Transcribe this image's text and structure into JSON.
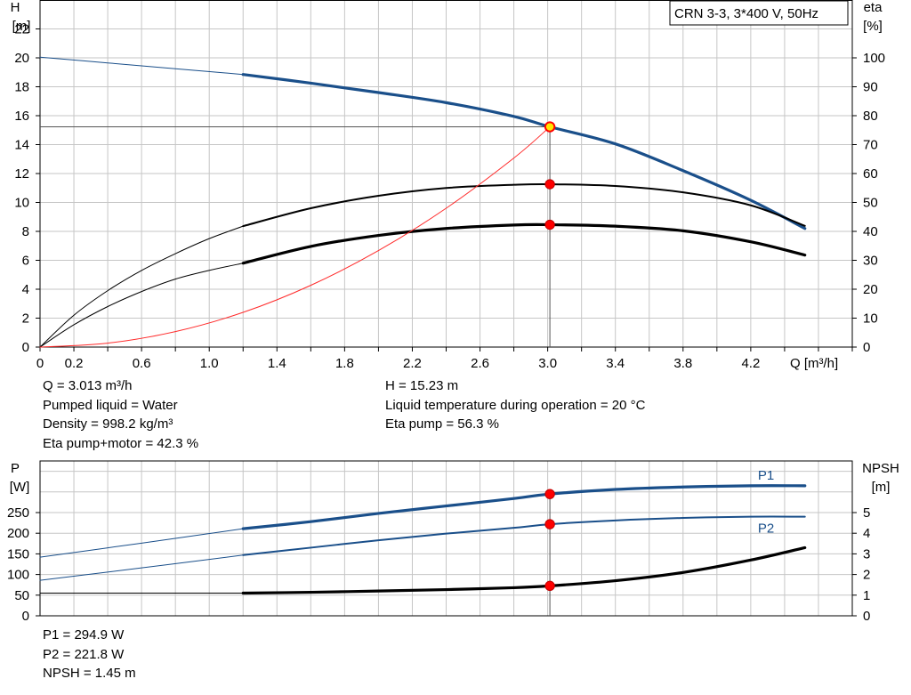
{
  "chart_data": [
    {
      "type": "line",
      "title": "CRN 3-3, 3*400 V, 50Hz",
      "xlabel": "Q [m³/h]",
      "ylabel": [
        "H",
        "[m]"
      ],
      "ylabel_right": [
        "eta",
        "[%]"
      ],
      "xlim": [
        0,
        4.8
      ],
      "ylim": [
        0,
        24
      ],
      "ylim_right": [
        0,
        120
      ],
      "grid": true,
      "x_ticks": [
        {
          "v": 0,
          "label": "0"
        },
        {
          "v": 0.2,
          "label": "0.2"
        },
        {
          "v": 0.6,
          "label": "0.6"
        },
        {
          "v": 1.0,
          "label": "1.0"
        },
        {
          "v": 1.4,
          "label": "1.4"
        },
        {
          "v": 1.8,
          "label": "1.8"
        },
        {
          "v": 2.2,
          "label": "2.2"
        },
        {
          "v": 2.6,
          "label": "2.6"
        },
        {
          "v": 3.0,
          "label": "3.0"
        },
        {
          "v": 3.4,
          "label": "3.4"
        },
        {
          "v": 3.8,
          "label": "3.8"
        },
        {
          "v": 4.2,
          "label": "4.2"
        }
      ],
      "y_ticks": [
        0,
        2,
        4,
        6,
        8,
        10,
        12,
        14,
        16,
        18,
        20,
        22
      ],
      "y_ticks_right": [
        0,
        10,
        20,
        30,
        40,
        50,
        60,
        70,
        80,
        90,
        100
      ],
      "series": [
        {
          "color": "#1a4f8a",
          "axis": "left",
          "width": 3.2,
          "x": [
            1.2,
            1.6,
            2.0,
            2.4,
            2.8,
            3.013,
            3.4,
            3.8,
            4.2,
            4.52
          ],
          "y": [
            18.85,
            18.25,
            17.6,
            16.9,
            15.95,
            15.23,
            14.05,
            12.2,
            10.15,
            8.2
          ]
        },
        {
          "color": "#1a4f8a",
          "axis": "left",
          "width": 1,
          "x": [
            0,
            0.4,
            0.8,
            1.2
          ],
          "y": [
            20.05,
            19.65,
            19.25,
            18.85
          ]
        },
        {
          "color": "#000000",
          "axis": "right",
          "width": 2,
          "x": [
            1.2,
            1.6,
            2.0,
            2.4,
            2.8,
            3.013,
            3.4,
            3.8,
            4.2,
            4.52
          ],
          "y": [
            41.8,
            48.0,
            52.3,
            55.0,
            56.1,
            56.3,
            55.7,
            53.5,
            49.0,
            41.9
          ]
        },
        {
          "color": "#000000",
          "axis": "right",
          "width": 1,
          "x": [
            0,
            0.2,
            0.4,
            0.6,
            0.8,
            1.0,
            1.2
          ],
          "y": [
            0,
            11.0,
            19.5,
            26.5,
            32.3,
            37.5,
            41.8
          ]
        },
        {
          "color": "#000000",
          "axis": "right",
          "width": 3.2,
          "x": [
            1.2,
            1.6,
            2.0,
            2.4,
            2.8,
            3.013,
            3.4,
            3.8,
            4.2,
            4.52
          ],
          "y": [
            29.0,
            34.8,
            38.6,
            41.0,
            42.2,
            42.3,
            41.8,
            40.2,
            36.4,
            31.8
          ]
        },
        {
          "color": "#000000",
          "axis": "right",
          "width": 1,
          "x": [
            0,
            0.2,
            0.4,
            0.6,
            0.8,
            1.0,
            1.2
          ],
          "y": [
            0,
            7.7,
            14.0,
            19.2,
            23.5,
            26.5,
            29.0
          ]
        },
        {
          "color": "#ff2a2a",
          "axis": "left",
          "width": 1,
          "x": [
            0,
            0.4,
            0.8,
            1.2,
            1.6,
            2.0,
            2.4,
            2.8,
            3.013
          ],
          "y": [
            0,
            0.27,
            1.07,
            2.4,
            4.27,
            6.67,
            9.6,
            13.07,
            15.23
          ]
        }
      ],
      "operating_point": {
        "x": 3.013,
        "H": 15.23,
        "eta_pump": 56.3,
        "eta_pump_motor": 42.3,
        "hline": true
      },
      "info_left": [
        "Q = 3.013 m³/h",
        "Pumped liquid = Water",
        "Density = 998.2 kg/m³",
        "Eta pump+motor = 42.3 %"
      ],
      "info_right": [
        "H = 15.23 m",
        "Liquid temperature during operation = 20 °C",
        "Eta pump = 56.3 %"
      ]
    },
    {
      "type": "line",
      "ylabel": [
        "P",
        "[W]"
      ],
      "ylabel_right": [
        "NPSH",
        "[m]"
      ],
      "xlim": [
        0,
        4.8
      ],
      "ylim": [
        0,
        375
      ],
      "ylim_right": [
        0,
        7.5
      ],
      "grid": true,
      "y_ticks": [
        0,
        50,
        100,
        150,
        200,
        250
      ],
      "y_ticks_right": [
        0,
        1,
        2,
        3,
        4,
        5
      ],
      "series": [
        {
          "name": "P1",
          "color": "#1a4f8a",
          "axis": "left",
          "width": 3.2,
          "x": [
            1.2,
            1.6,
            2.0,
            2.4,
            2.8,
            3.013,
            3.4,
            3.8,
            4.2,
            4.52
          ],
          "y": [
            211,
            228,
            248,
            266,
            284,
            294.9,
            306,
            312,
            315,
            315
          ]
        },
        {
          "color": "#1a4f8a",
          "axis": "left",
          "width": 1,
          "x": [
            0,
            0.6,
            1.2
          ],
          "y": [
            142,
            176,
            211
          ]
        },
        {
          "name": "P2",
          "color": "#1a4f8a",
          "axis": "left",
          "width": 2,
          "x": [
            1.2,
            1.6,
            2.0,
            2.4,
            2.8,
            3.013,
            3.4,
            3.8,
            4.2,
            4.52
          ],
          "y": [
            147,
            165,
            183,
            199,
            213,
            221.8,
            231,
            237,
            240,
            240
          ]
        },
        {
          "color": "#1a4f8a",
          "axis": "left",
          "width": 1,
          "x": [
            0,
            0.6,
            1.2
          ],
          "y": [
            86,
            116,
            147
          ]
        },
        {
          "color": "#000000",
          "axis": "right",
          "width": 3.2,
          "x": [
            1.2,
            1.6,
            2.0,
            2.4,
            2.8,
            3.013,
            3.4,
            3.8,
            4.2,
            4.52
          ],
          "y": [
            1.1,
            1.14,
            1.2,
            1.27,
            1.36,
            1.45,
            1.7,
            2.1,
            2.7,
            3.3
          ]
        },
        {
          "color": "#000000",
          "axis": "right",
          "width": 1,
          "x": [
            0,
            1.2
          ],
          "y": [
            1.1,
            1.1
          ]
        }
      ],
      "operating_point": {
        "x": 3.013,
        "P1": 294.9,
        "P2": 221.8,
        "NPSH": 1.45
      },
      "info_left": [
        "P1 = 294.9 W",
        "P2 = 221.8 W",
        "NPSH = 1.45 m"
      ]
    }
  ]
}
